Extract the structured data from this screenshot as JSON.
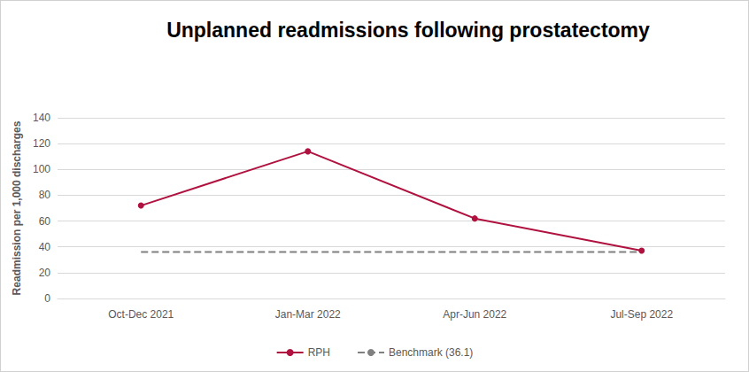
{
  "chart_data": {
    "type": "line",
    "title": "Unplanned readmissions following prostatectomy",
    "y_label": "Readmission per 1,000 discharges",
    "categories": [
      "Oct-Dec 2021",
      "Jan-Mar 2022",
      "Apr-Jun 2022",
      "Jul-Sep 2022"
    ],
    "series": [
      {
        "name": "RPH",
        "color": "#b0123f",
        "marker": "circle",
        "line_style": "solid",
        "values": [
          72,
          114,
          62,
          37
        ]
      },
      {
        "name": "Benchmark (36.1)",
        "color": "#808080",
        "marker": "none",
        "line_style": "dashed",
        "values": [
          36.1,
          36.1,
          36.1,
          36.1
        ]
      }
    ],
    "ylim": [
      0,
      140
    ],
    "yticks": [
      0,
      20,
      40,
      60,
      80,
      100,
      120,
      140
    ],
    "grid": true,
    "legend": "bottom"
  }
}
